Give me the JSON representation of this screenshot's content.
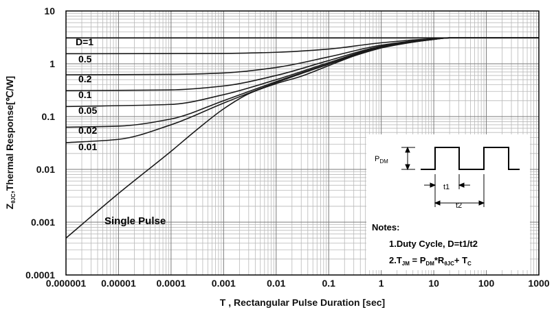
{
  "chart_data": {
    "type": "line",
    "xlabel": "T , Rectangular Pulse Duration  [sec]",
    "ylabel": {
      "pre": "Z",
      "sub": "θJC",
      "post": ",Thermal Response[℃/W]"
    },
    "xscale": "log",
    "yscale": "log",
    "xlim": [
      1e-06,
      1000
    ],
    "ylim": [
      0.0001,
      10
    ],
    "grid": true,
    "x_tick_labels": [
      "0.000001",
      "0.00001",
      "0.0001",
      "0.001",
      "0.01",
      "0.1",
      "1",
      "10",
      "100",
      "1000"
    ],
    "y_tick_labels": [
      "0.0001",
      "0.001",
      "0.01",
      "0.1",
      "1",
      "10"
    ],
    "series": [
      {
        "name": "D=1",
        "points": [
          [
            1e-06,
            3.1
          ],
          [
            1000,
            3.1
          ]
        ]
      },
      {
        "name": "0.5",
        "points": [
          [
            1e-06,
            1.55
          ],
          [
            0.001,
            1.57
          ],
          [
            0.01,
            1.65
          ],
          [
            0.1,
            1.9
          ],
          [
            1,
            2.5
          ],
          [
            10,
            3.0
          ],
          [
            20,
            3.1
          ],
          [
            1000,
            3.1
          ]
        ]
      },
      {
        "name": "0.2",
        "points": [
          [
            1e-06,
            0.62
          ],
          [
            0.0001,
            0.63
          ],
          [
            0.001,
            0.67
          ],
          [
            0.01,
            0.85
          ],
          [
            0.1,
            1.35
          ],
          [
            1,
            2.25
          ],
          [
            10,
            2.95
          ],
          [
            20,
            3.1
          ],
          [
            1000,
            3.1
          ]
        ]
      },
      {
        "name": "0.1",
        "points": [
          [
            1e-06,
            0.31
          ],
          [
            0.0001,
            0.32
          ],
          [
            0.001,
            0.38
          ],
          [
            0.01,
            0.6
          ],
          [
            0.1,
            1.15
          ],
          [
            1,
            2.15
          ],
          [
            10,
            2.95
          ],
          [
            20,
            3.1
          ],
          [
            1000,
            3.1
          ]
        ]
      },
      {
        "name": "0.05",
        "points": [
          [
            1e-06,
            0.155
          ],
          [
            0.0001,
            0.17
          ],
          [
            0.001,
            0.26
          ],
          [
            0.01,
            0.5
          ],
          [
            0.1,
            1.05
          ],
          [
            1,
            2.1
          ],
          [
            10,
            2.9
          ],
          [
            20,
            3.1
          ],
          [
            1000,
            3.1
          ]
        ]
      },
      {
        "name": "0.02",
        "points": [
          [
            1e-06,
            0.063
          ],
          [
            1e-05,
            0.066
          ],
          [
            0.0001,
            0.09
          ],
          [
            0.001,
            0.2
          ],
          [
            0.01,
            0.46
          ],
          [
            0.1,
            1.0
          ],
          [
            1,
            2.05
          ],
          [
            10,
            2.9
          ],
          [
            20,
            3.1
          ],
          [
            1000,
            3.1
          ]
        ]
      },
      {
        "name": "0.01",
        "points": [
          [
            1e-06,
            0.032
          ],
          [
            1e-05,
            0.037
          ],
          [
            0.0001,
            0.07
          ],
          [
            0.001,
            0.18
          ],
          [
            0.01,
            0.44
          ],
          [
            0.1,
            0.98
          ],
          [
            1,
            2.0
          ],
          [
            10,
            2.9
          ],
          [
            20,
            3.1
          ],
          [
            1000,
            3.1
          ]
        ]
      },
      {
        "name": "Single Pulse",
        "points": [
          [
            1e-06,
            0.0005
          ],
          [
            1e-05,
            0.0035
          ],
          [
            0.0001,
            0.022
          ],
          [
            0.0003,
            0.055
          ],
          [
            0.001,
            0.14
          ],
          [
            0.003,
            0.27
          ],
          [
            0.01,
            0.42
          ],
          [
            0.03,
            0.58
          ],
          [
            0.1,
            0.92
          ],
          [
            0.3,
            1.4
          ],
          [
            1,
            2.0
          ],
          [
            3,
            2.6
          ],
          [
            10,
            2.95
          ],
          [
            20,
            3.1
          ],
          [
            1000,
            3.1
          ]
        ]
      }
    ],
    "inset": {
      "pulse_label": {
        "pre": "P",
        "sub": "DM"
      },
      "t1_label": "t1",
      "t2_label": "t2",
      "notes_title": "Notes:",
      "note1": "1.Duty  Cycle, D=t1/t2",
      "note2": {
        "p1": "2.T",
        "s1": "JM",
        "p2": " = P",
        "s2": "DM",
        "p3": "*R",
        "s3": "θJC",
        "p4": "+ T",
        "s4": "C"
      }
    }
  }
}
